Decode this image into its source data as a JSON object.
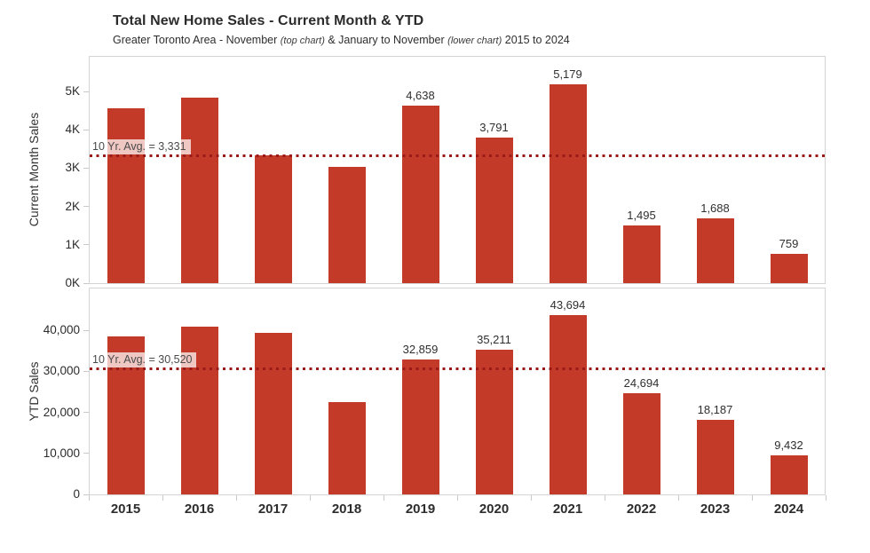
{
  "header": {
    "title": "Total New Home Sales - Current Month & YTD",
    "subtitle_parts": [
      "Greater Toronto Area - November ",
      "(top chart)",
      " & January to November ",
      "(lower chart)",
      " 2015 to 2024"
    ]
  },
  "colors": {
    "bar": "#c43a29",
    "ref_line": "#9a1a1a",
    "panel_border": "#d4d4d4",
    "tick": "#c9c9c9",
    "label_text": "#2f2f2f",
    "ref_label_text": "#4a4a4a",
    "ref_label_bg": "rgba(255,255,255,0.72)"
  },
  "chart_data": [
    {
      "type": "bar",
      "name": "current-month-sales",
      "ylabel": "Current Month Sales",
      "categories": [
        "2015",
        "2016",
        "2017",
        "2018",
        "2019",
        "2020",
        "2021",
        "2022",
        "2023",
        "2024"
      ],
      "values": [
        4555,
        4845,
        3330,
        3030,
        4638,
        3791,
        5179,
        1495,
        1688,
        759
      ],
      "bar_labels": [
        null,
        null,
        null,
        null,
        "4,638",
        "3,791",
        "5,179",
        "1,495",
        "1,688",
        "759"
      ],
      "ref_line": {
        "value": 3331,
        "label": "10 Yr. Avg. = 3,331"
      },
      "y_ticks": [
        {
          "value": 0,
          "label": "0K"
        },
        {
          "value": 1000,
          "label": "1K"
        },
        {
          "value": 2000,
          "label": "2K"
        },
        {
          "value": 3000,
          "label": "3K"
        },
        {
          "value": 4000,
          "label": "4K"
        },
        {
          "value": 5000,
          "label": "5K"
        }
      ],
      "ylim": [
        0,
        5900
      ],
      "grid": false,
      "legend": "none"
    },
    {
      "type": "bar",
      "name": "ytd-sales",
      "ylabel": "YTD Sales",
      "categories": [
        "2015",
        "2016",
        "2017",
        "2018",
        "2019",
        "2020",
        "2021",
        "2022",
        "2023",
        "2024"
      ],
      "values": [
        38430,
        40820,
        39300,
        22573,
        32859,
        35211,
        43694,
        24694,
        18187,
        9432
      ],
      "bar_labels": [
        null,
        null,
        null,
        null,
        "32,859",
        "35,211",
        "43,694",
        "24,694",
        "18,187",
        "9,432"
      ],
      "ref_line": {
        "value": 30520,
        "label": "10 Yr. Avg. = 30,520"
      },
      "y_ticks": [
        {
          "value": 0,
          "label": "0"
        },
        {
          "value": 10000,
          "label": "10,000"
        },
        {
          "value": 20000,
          "label": "20,000"
        },
        {
          "value": 30000,
          "label": "30,000"
        },
        {
          "value": 40000,
          "label": "40,000"
        }
      ],
      "ylim": [
        0,
        50500
      ],
      "grid": false,
      "legend": "none"
    }
  ]
}
